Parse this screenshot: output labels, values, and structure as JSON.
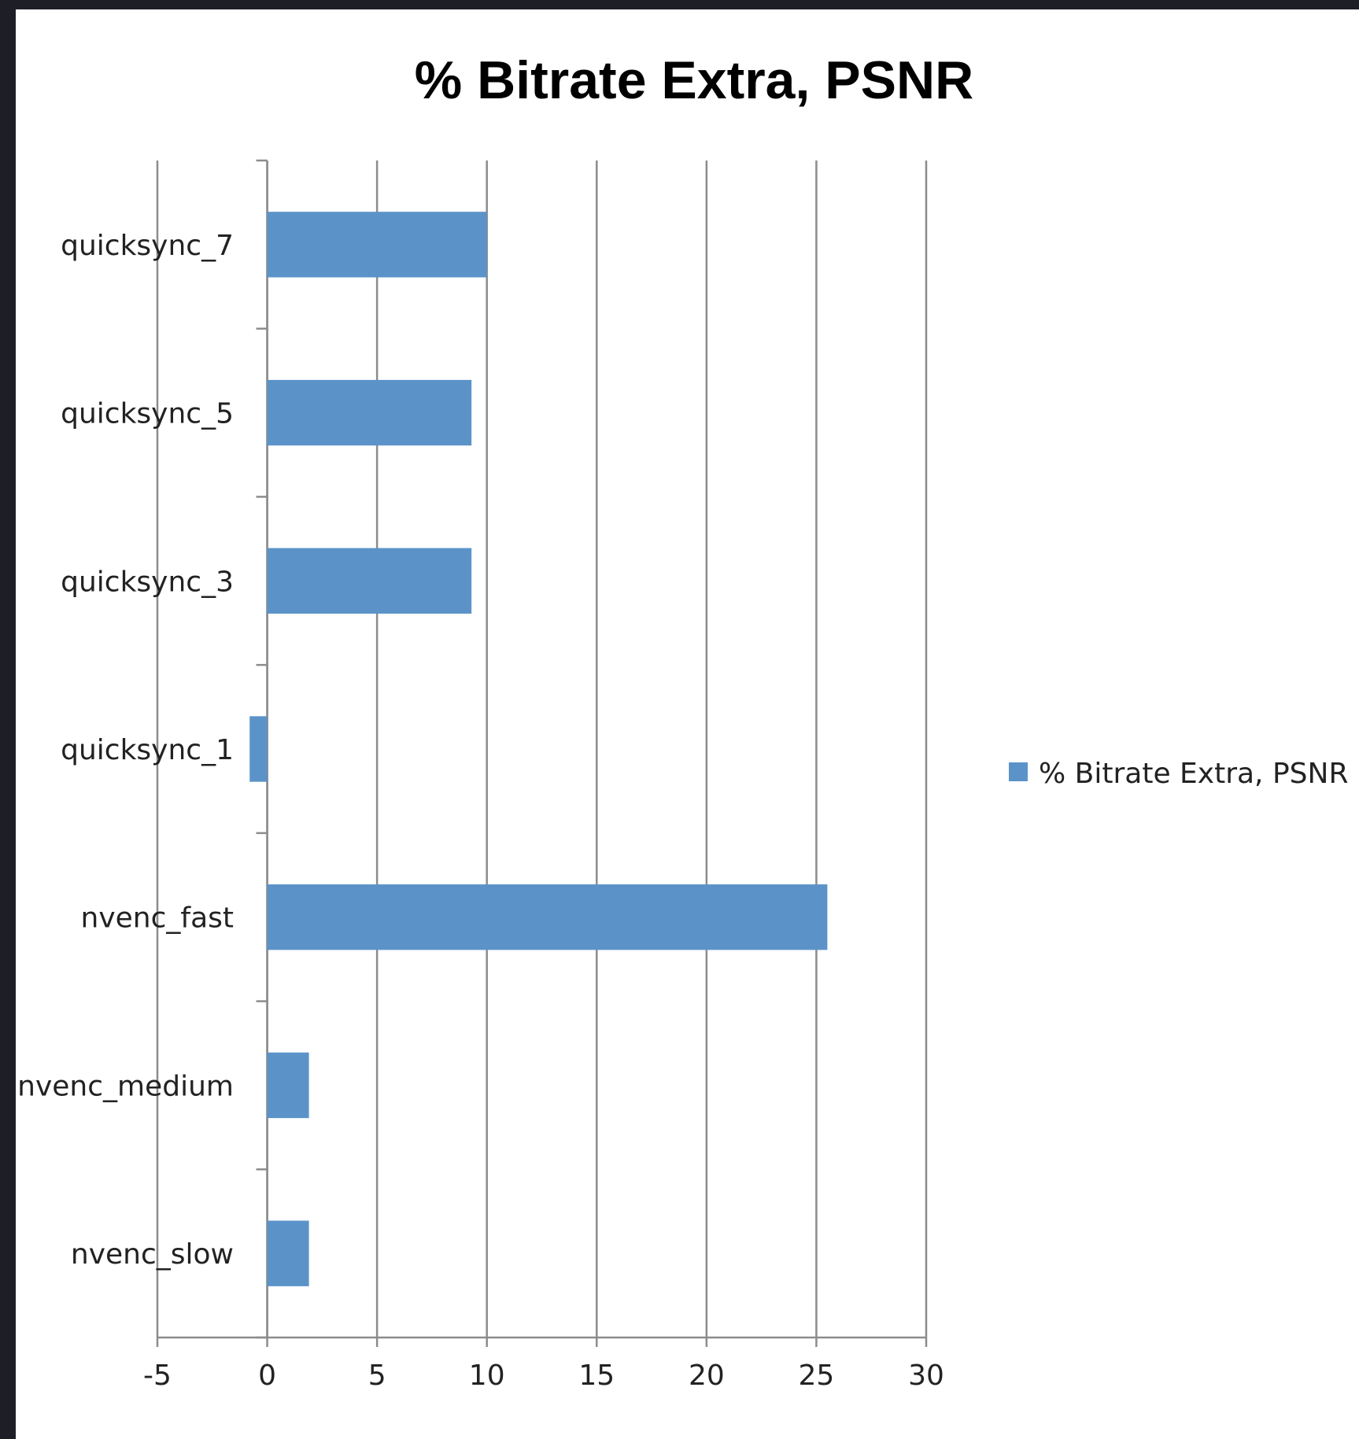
{
  "chart_data": {
    "type": "bar",
    "orientation": "horizontal",
    "title": "% Bitrate Extra, PSNR",
    "xlabel": "",
    "ylabel": "",
    "categories": [
      "quicksync_7",
      "quicksync_5",
      "quicksync_3",
      "quicksync_1",
      "nvenc_fast",
      "nvenc_medium",
      "nvenc_slow"
    ],
    "series": [
      {
        "name": "% Bitrate Extra, PSNR",
        "values": [
          10.0,
          9.3,
          9.3,
          -0.8,
          25.5,
          1.9,
          1.9
        ],
        "color": "#5b93c9"
      }
    ],
    "xlim": [
      -5,
      30
    ],
    "xticks": [
      "-5",
      "0",
      "5",
      "10",
      "15",
      "20",
      "25",
      "30"
    ],
    "grid": "vertical",
    "legend": "right"
  }
}
